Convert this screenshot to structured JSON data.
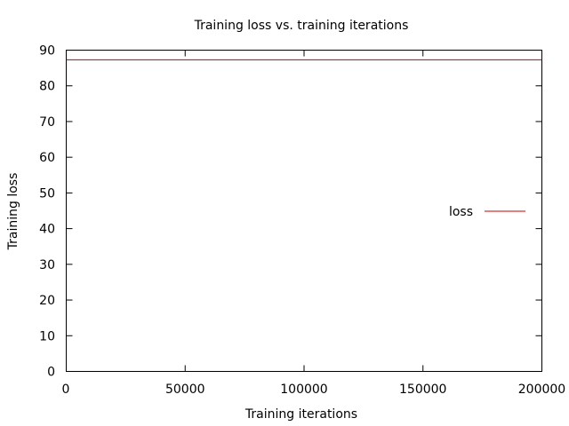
{
  "chart_data": {
    "type": "line",
    "title": "Training loss vs. training iterations",
    "xlabel": "Training iterations",
    "ylabel": "Training loss",
    "xlim": [
      0,
      200000
    ],
    "ylim": [
      0,
      90
    ],
    "x_ticks": [
      0,
      50000,
      100000,
      150000,
      200000
    ],
    "y_ticks": [
      0,
      10,
      20,
      30,
      40,
      50,
      60,
      70,
      80,
      90
    ],
    "grid": false,
    "legend_position": "right",
    "series": [
      {
        "name": "loss",
        "color": "#c00000",
        "x": [
          0,
          200000
        ],
        "y": [
          87.3,
          87.3
        ]
      }
    ]
  }
}
